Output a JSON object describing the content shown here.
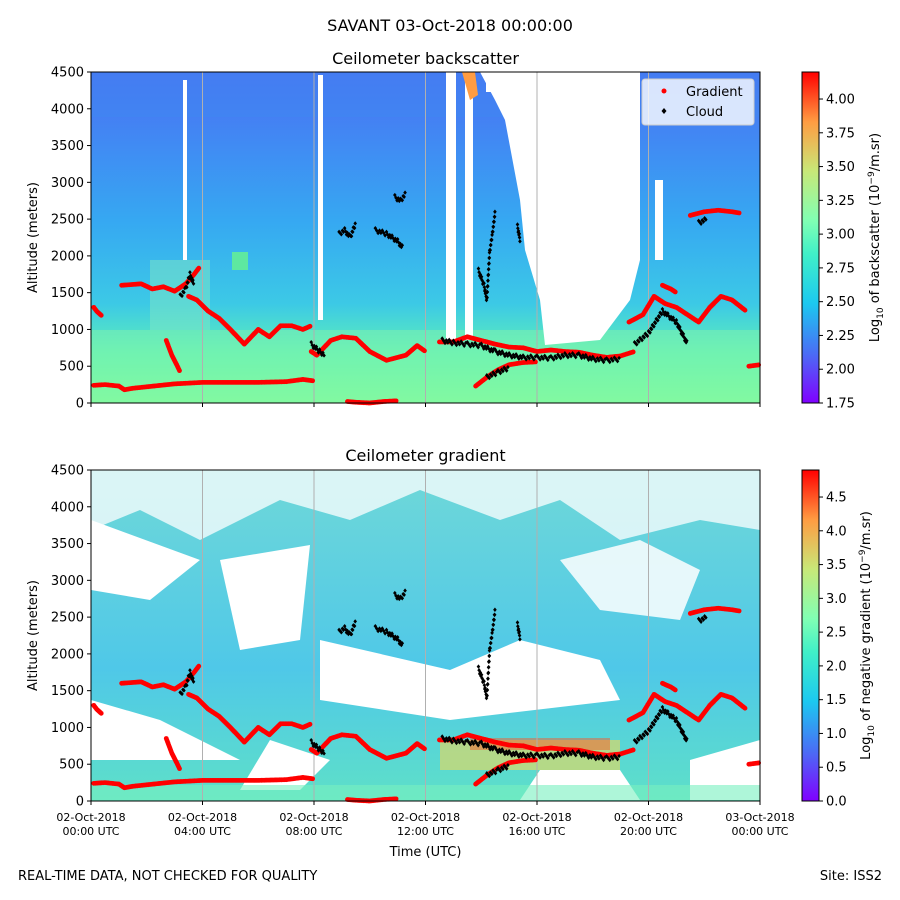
{
  "figure": {
    "suptitle": "SAVANT 03-Oct-2018 00:00:00",
    "footer_left": "REAL-TIME DATA, NOT CHECKED FOR QUALITY",
    "footer_right": "Site: ISS2"
  },
  "chart_data": [
    {
      "type": "heatmap",
      "title": "Ceilometer backscatter",
      "xlabel": "",
      "ylabel": "Altitude (meters)",
      "ylim": [
        0,
        4500
      ],
      "yticks": [
        "0",
        "500",
        "1000",
        "1500",
        "2000",
        "2500",
        "3000",
        "3500",
        "4000",
        "4500"
      ],
      "x_ticks": [
        "02-Oct-2018 00:00 UTC",
        "02-Oct-2018 04:00 UTC",
        "02-Oct-2018 08:00 UTC",
        "02-Oct-2018 12:00 UTC",
        "02-Oct-2018 16:00 UTC",
        "02-Oct-2018 20:00 UTC",
        "03-Oct-2018 00:00 UTC"
      ],
      "x_tick_labels_shown": false,
      "xlim_hours": [
        0,
        24
      ],
      "colorbar": {
        "label": "Log10 of backscatter (10^-9/m.sr)",
        "label_parts": {
          "pre": "Log",
          "sub": "10",
          "mid": " of backscatter (10",
          "sup": "−9",
          "post": "/m.sr)"
        },
        "range": [
          1.75,
          4.2
        ],
        "ticks": [
          "1.75",
          "2.00",
          "2.25",
          "2.50",
          "2.75",
          "3.00",
          "3.25",
          "3.50",
          "3.75",
          "4.00"
        ]
      },
      "legend": {
        "position": "top-right",
        "entries": [
          {
            "label": "Gradient",
            "marker": "red-dot",
            "color": "#ff0000"
          },
          {
            "label": "Cloud",
            "marker": "black-diamond",
            "color": "#000000"
          }
        ]
      },
      "series": [
        {
          "name": "Gradient",
          "color": "#ff0000",
          "segments": [
            [
              [
                0.1,
                1300
              ],
              [
                0.2,
                1250
              ],
              [
                0.4,
                1180
              ]
            ],
            [
              [
                0.1,
                240
              ],
              [
                0.5,
                250
              ],
              [
                1.0,
                230
              ],
              [
                1.2,
                180
              ],
              [
                1.5,
                200
              ],
              [
                2.0,
                220
              ],
              [
                3.0,
                260
              ],
              [
                4.0,
                280
              ],
              [
                5.0,
                280
              ],
              [
                6.0,
                280
              ],
              [
                7.0,
                290
              ],
              [
                7.6,
                320
              ],
              [
                8.0,
                300
              ]
            ],
            [
              [
                1.1,
                1600
              ],
              [
                1.8,
                1620
              ],
              [
                2.2,
                1550
              ],
              [
                2.6,
                1580
              ],
              [
                3.0,
                1520
              ],
              [
                3.4,
                1620
              ],
              [
                3.7,
                1750
              ],
              [
                3.9,
                1850
              ]
            ],
            [
              [
                2.7,
                850
              ],
              [
                2.9,
                650
              ],
              [
                3.1,
                500
              ],
              [
                3.2,
                420
              ]
            ],
            [
              [
                3.5,
                1450
              ],
              [
                3.8,
                1400
              ],
              [
                4.2,
                1250
              ],
              [
                4.6,
                1150
              ],
              [
                5.0,
                1000
              ],
              [
                5.5,
                800
              ],
              [
                6.0,
                1000
              ],
              [
                6.4,
                900
              ],
              [
                6.8,
                1050
              ],
              [
                7.2,
                1050
              ],
              [
                7.6,
                1000
              ],
              [
                7.9,
                1050
              ]
            ],
            [
              [
                7.9,
                700
              ],
              [
                8.1,
                650
              ],
              [
                8.6,
                850
              ],
              [
                9.0,
                900
              ],
              [
                9.5,
                880
              ],
              [
                10.0,
                700
              ],
              [
                10.6,
                580
              ],
              [
                11.0,
                620
              ],
              [
                11.3,
                650
              ],
              [
                11.7,
                780
              ],
              [
                12.0,
                700
              ]
            ],
            [
              [
                9.2,
                20
              ],
              [
                9.5,
                10
              ],
              [
                10.0,
                0
              ],
              [
                10.5,
                20
              ],
              [
                11.0,
                30
              ]
            ],
            [
              [
                12.5,
                830
              ],
              [
                13.0,
                830
              ],
              [
                13.5,
                900
              ],
              [
                14.0,
                850
              ],
              [
                14.5,
                800
              ],
              [
                15.0,
                760
              ],
              [
                15.5,
                750
              ],
              [
                16.0,
                700
              ],
              [
                16.5,
                720
              ],
              [
                17.0,
                700
              ],
              [
                17.5,
                690
              ],
              [
                18.0,
                650
              ],
              [
                18.5,
                620
              ],
              [
                19.0,
                640
              ],
              [
                19.5,
                700
              ]
            ],
            [
              [
                13.8,
                230
              ],
              [
                14.2,
                350
              ],
              [
                14.6,
                450
              ],
              [
                15.0,
                520
              ],
              [
                15.5,
                550
              ],
              [
                16.0,
                560
              ]
            ],
            [
              [
                19.3,
                1100
              ],
              [
                19.8,
                1200
              ],
              [
                20.2,
                1450
              ],
              [
                20.6,
                1350
              ],
              [
                21.0,
                1300
              ],
              [
                21.4,
                1200
              ],
              [
                21.8,
                1100
              ],
              [
                22.2,
                1300
              ],
              [
                22.6,
                1450
              ],
              [
                23.0,
                1400
              ],
              [
                23.5,
                1250
              ]
            ],
            [
              [
                20.5,
                1600
              ],
              [
                20.8,
                1550
              ],
              [
                21.0,
                1500
              ]
            ],
            [
              [
                21.5,
                2550
              ],
              [
                22.0,
                2600
              ],
              [
                22.5,
                2620
              ],
              [
                23.0,
                2600
              ],
              [
                23.3,
                2580
              ]
            ],
            [
              [
                23.6,
                500
              ],
              [
                24.0,
                520
              ]
            ]
          ]
        },
        {
          "name": "Cloud",
          "color": "#000000",
          "segments": [
            [
              [
                3.2,
                1450
              ],
              [
                3.4,
                1550
              ],
              [
                3.55,
                1750
              ],
              [
                3.7,
                1600
              ]
            ],
            [
              [
                7.9,
                800
              ],
              [
                8.2,
                700
              ],
              [
                8.4,
                650
              ]
            ],
            [
              [
                8.9,
                2300
              ],
              [
                9.1,
                2350
              ],
              [
                9.3,
                2250
              ],
              [
                9.5,
                2450
              ]
            ],
            [
              [
                10.9,
                2800
              ],
              [
                11.1,
                2750
              ],
              [
                11.3,
                2850
              ]
            ],
            [
              [
                10.2,
                2350
              ],
              [
                10.6,
                2300
              ],
              [
                11.0,
                2200
              ],
              [
                11.2,
                2100
              ]
            ],
            [
              [
                12.6,
                850
              ],
              [
                13.0,
                820
              ],
              [
                13.5,
                800
              ],
              [
                14.0,
                780
              ],
              [
                14.5,
                700
              ],
              [
                15.0,
                650
              ],
              [
                15.5,
                620
              ],
              [
                16.0,
                620
              ],
              [
                16.5,
                610
              ],
              [
                17.0,
                650
              ],
              [
                17.5,
                650
              ],
              [
                18.0,
                600
              ],
              [
                18.5,
                580
              ],
              [
                19.0,
                600
              ]
            ],
            [
              [
                14.2,
                350
              ],
              [
                14.6,
                420
              ],
              [
                15.0,
                480
              ]
            ],
            [
              [
                13.9,
                1800
              ],
              [
                14.1,
                1600
              ],
              [
                14.2,
                1400
              ],
              [
                14.3,
                2050
              ],
              [
                14.4,
                2300
              ],
              [
                14.5,
                2600
              ]
            ],
            [
              [
                15.3,
                2400
              ],
              [
                15.4,
                2200
              ]
            ],
            [
              [
                19.5,
                800
              ],
              [
                20.0,
                950
              ],
              [
                20.5,
                1250
              ],
              [
                21.0,
                1100
              ],
              [
                21.4,
                800
              ]
            ],
            [
              [
                21.8,
                2450
              ],
              [
                22.1,
                2500
              ]
            ]
          ]
        }
      ]
    },
    {
      "type": "heatmap",
      "title": "Ceilometer gradient",
      "xlabel": "Time (UTC)",
      "ylabel": "Altitude (meters)",
      "ylim": [
        0,
        4500
      ],
      "yticks": [
        "0",
        "500",
        "1000",
        "1500",
        "2000",
        "2500",
        "3000",
        "3500",
        "4000",
        "4500"
      ],
      "x_ticks": [
        "02-Oct-2018 00:00 UTC",
        "02-Oct-2018 04:00 UTC",
        "02-Oct-2018 08:00 UTC",
        "02-Oct-2018 12:00 UTC",
        "02-Oct-2018 16:00 UTC",
        "02-Oct-2018 20:00 UTC",
        "03-Oct-2018 00:00 UTC"
      ],
      "x_tick_labels_shown": true,
      "xlim_hours": [
        0,
        24
      ],
      "colorbar": {
        "label": "Log10 of negative gradient (10^-9/m.sr)",
        "label_parts": {
          "pre": "Log",
          "sub": "10",
          "mid": " of negative gradient (10",
          "sup": "−9",
          "post": "/m.sr)"
        },
        "range": [
          0.0,
          4.9
        ],
        "ticks": [
          "0.0",
          "0.5",
          "1.0",
          "1.5",
          "2.0",
          "2.5",
          "3.0",
          "3.5",
          "4.0",
          "4.5"
        ]
      }
    }
  ]
}
